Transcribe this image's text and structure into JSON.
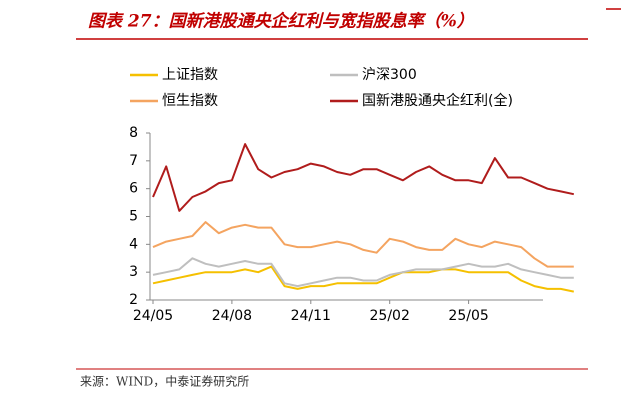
{
  "header": {
    "title": "图表 27：国新港股通央企红利与宽指股息率（%）"
  },
  "chart_data": {
    "type": "line",
    "categories": [
      "24/05",
      null,
      null,
      null,
      null,
      null,
      "24/08",
      null,
      null,
      null,
      null,
      null,
      "24/11",
      null,
      null,
      null,
      null,
      null,
      "25/02",
      null,
      null,
      null,
      null,
      null,
      "25/05",
      null,
      null,
      null,
      null,
      null,
      null,
      null,
      null
    ],
    "series": [
      {
        "name": "上证指数",
        "color": "#f5c000",
        "values": [
          2.6,
          2.7,
          2.8,
          2.9,
          3.0,
          3.0,
          3.0,
          3.1,
          3.0,
          3.2,
          2.5,
          2.4,
          2.5,
          2.5,
          2.6,
          2.6,
          2.6,
          2.6,
          2.8,
          3.0,
          3.0,
          3.0,
          3.1,
          3.1,
          3.0,
          3.0,
          3.0,
          3.0,
          2.7,
          2.5,
          2.4,
          2.4,
          2.3
        ]
      },
      {
        "name": "沪深300",
        "color": "#bfbfbf",
        "values": [
          2.9,
          3.0,
          3.1,
          3.5,
          3.3,
          3.2,
          3.3,
          3.4,
          3.3,
          3.3,
          2.6,
          2.5,
          2.6,
          2.7,
          2.8,
          2.8,
          2.7,
          2.7,
          2.9,
          3.0,
          3.1,
          3.1,
          3.1,
          3.2,
          3.3,
          3.2,
          3.2,
          3.3,
          3.1,
          3.0,
          2.9,
          2.8,
          2.8
        ]
      },
      {
        "name": "恒生指数",
        "color": "#f4a460",
        "values": [
          3.9,
          4.1,
          4.2,
          4.3,
          4.8,
          4.4,
          4.6,
          4.7,
          4.6,
          4.6,
          4.0,
          3.9,
          3.9,
          4.0,
          4.1,
          4.0,
          3.8,
          3.7,
          4.2,
          4.1,
          3.9,
          3.8,
          3.8,
          4.2,
          4.0,
          3.9,
          4.1,
          4.0,
          3.9,
          3.5,
          3.2,
          3.2,
          3.2
        ]
      },
      {
        "name": "国新港股通央企红利(全)",
        "color": "#b01c1c",
        "values": [
          5.7,
          6.8,
          5.2,
          5.7,
          5.9,
          6.2,
          6.3,
          7.6,
          6.7,
          6.4,
          6.6,
          6.7,
          6.9,
          6.8,
          6.6,
          6.5,
          6.7,
          6.7,
          6.5,
          6.3,
          6.6,
          6.8,
          6.5,
          6.3,
          6.3,
          6.2,
          7.1,
          6.4,
          6.4,
          6.2,
          6.0,
          5.9,
          5.8
        ]
      }
    ],
    "ylim": [
      2,
      8
    ],
    "yticks": [
      2,
      3,
      4,
      5,
      6,
      7,
      8
    ],
    "grid": false
  },
  "footer": {
    "source": "来源：WIND，中泰证券研究所"
  }
}
